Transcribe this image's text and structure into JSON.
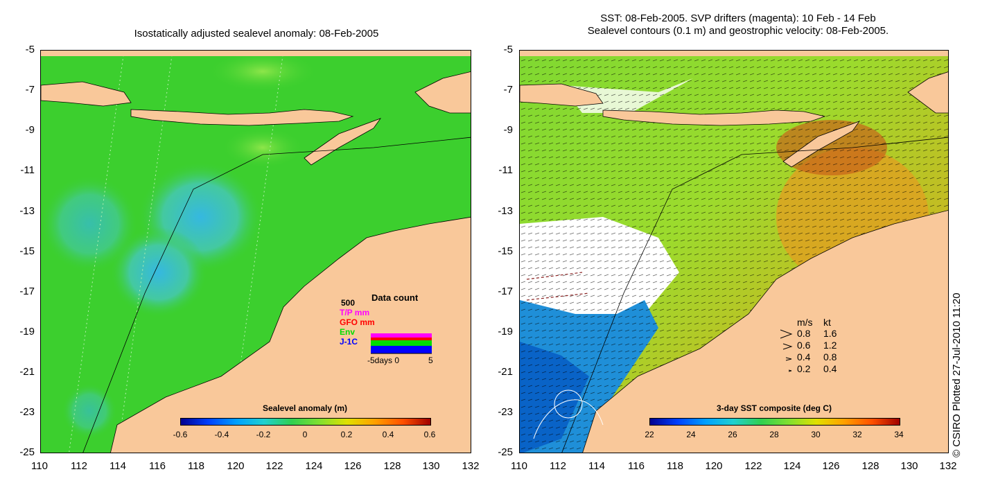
{
  "left_panel": {
    "title": "Isostatically adjusted sealevel anomaly: 08-Feb-2005",
    "y_ticks": [
      "-5",
      "-7",
      "-9",
      "-11",
      "-13",
      "-15",
      "-17",
      "-19",
      "-21",
      "-23",
      "-25"
    ],
    "x_ticks": [
      "110",
      "112",
      "114",
      "116",
      "118",
      "120",
      "122",
      "124",
      "126",
      "128",
      "130",
      "132"
    ],
    "colorbar": {
      "label": "Sealevel anomaly (m)",
      "ticks": [
        "-0.6",
        "-0.4",
        "-0.2",
        "0",
        "0.2",
        "0.4",
        "0.6"
      ]
    },
    "data_count": {
      "title": "Data count",
      "max_label": "500",
      "legend": [
        {
          "label": "T/P mm",
          "color": "#ff00ff"
        },
        {
          "label": "GFO mm",
          "color": "#ff0000"
        },
        {
          "label": "Env",
          "color": "#00dd00"
        },
        {
          "label": "J-1C",
          "color": "#0000ff"
        }
      ],
      "axis_label": "-5days 0",
      "axis_end": "5"
    }
  },
  "right_panel": {
    "title_line1": "SST: 08-Feb-2005. SVP drifters (magenta): 10 Feb - 14 Feb",
    "title_line2": "Sealevel contours (0.1 m) and geostrophic velocity: 08-Feb-2005.",
    "y_ticks": [
      "-5",
      "-7",
      "-9",
      "-11",
      "-13",
      "-15",
      "-17",
      "-19",
      "-21",
      "-23",
      "-25"
    ],
    "x_ticks": [
      "110",
      "112",
      "114",
      "116",
      "118",
      "120",
      "122",
      "124",
      "126",
      "128",
      "130",
      "132"
    ],
    "colorbar": {
      "label": "3-day SST composite (deg C)",
      "ticks": [
        "22",
        "24",
        "26",
        "28",
        "30",
        "32",
        "34"
      ]
    },
    "speed_legend": {
      "header_ms": "m/s",
      "header_kt": "kt",
      "rows": [
        {
          "ms": "0.8",
          "kt": "1.6"
        },
        {
          "ms": "0.6",
          "kt": "1.2"
        },
        {
          "ms": "0.4",
          "kt": "0.8"
        },
        {
          "ms": "0.2",
          "kt": "0.4"
        }
      ]
    }
  },
  "credit": "© CSIRO Plotted 27-Jul-2010 11:20",
  "colors": {
    "land": "#f9c89a",
    "sea_green": "#3ccf2e",
    "anomaly_low": "#2fb5d8",
    "sst_warm": "#e3a21a",
    "sst_hot": "#c8641a"
  }
}
